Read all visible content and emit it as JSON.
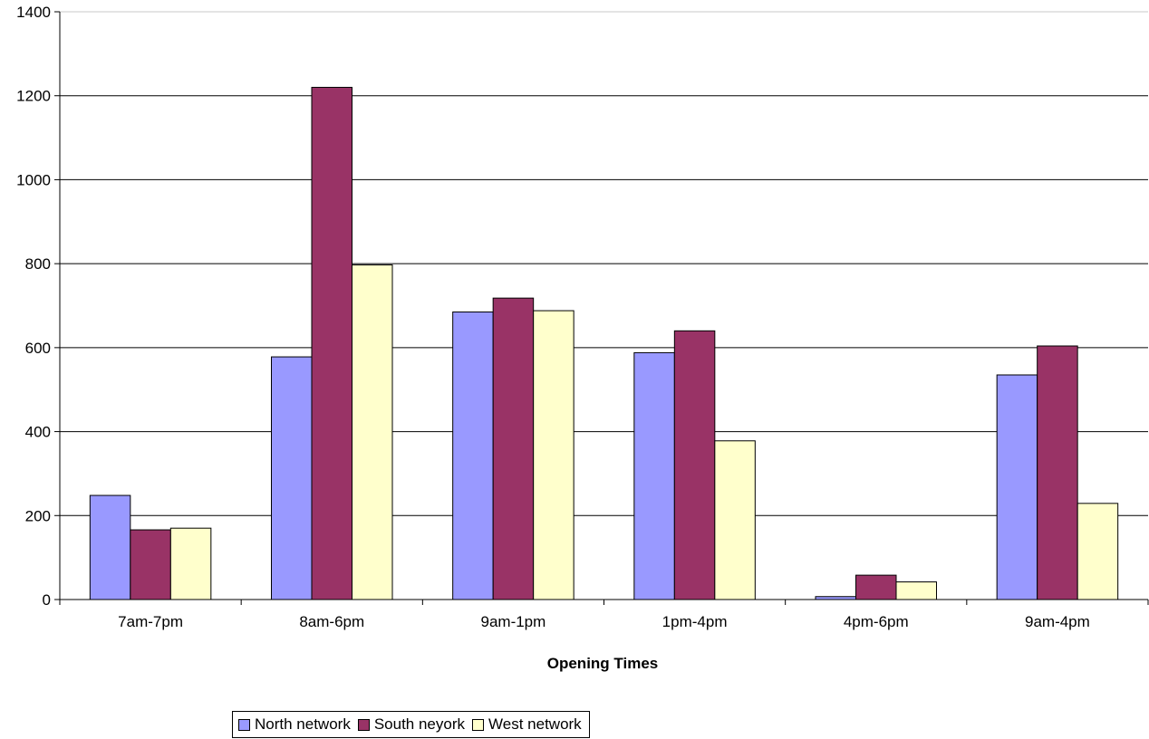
{
  "chart_data": {
    "type": "bar",
    "title": "",
    "xlabel": "Opening Times",
    "ylabel": "",
    "ylim": [
      0,
      1400
    ],
    "yticks": [
      0,
      200,
      400,
      600,
      800,
      1000,
      1200,
      1400
    ],
    "grid": true,
    "legend_position": "bottom",
    "categories": [
      "7am-7pm",
      "8am-6pm",
      "9am-1pm",
      "1pm-4pm",
      "4pm-6pm",
      "9am-4pm"
    ],
    "series": [
      {
        "name": "North network",
        "color": "#9999FF",
        "values": [
          248,
          578,
          685,
          588,
          7,
          535
        ]
      },
      {
        "name": "South neyork",
        "color": "#993366",
        "values": [
          166,
          1220,
          718,
          640,
          58,
          604
        ]
      },
      {
        "name": "West network",
        "color": "#FFFFCC",
        "values": [
          170,
          797,
          688,
          378,
          42,
          229
        ]
      }
    ]
  }
}
